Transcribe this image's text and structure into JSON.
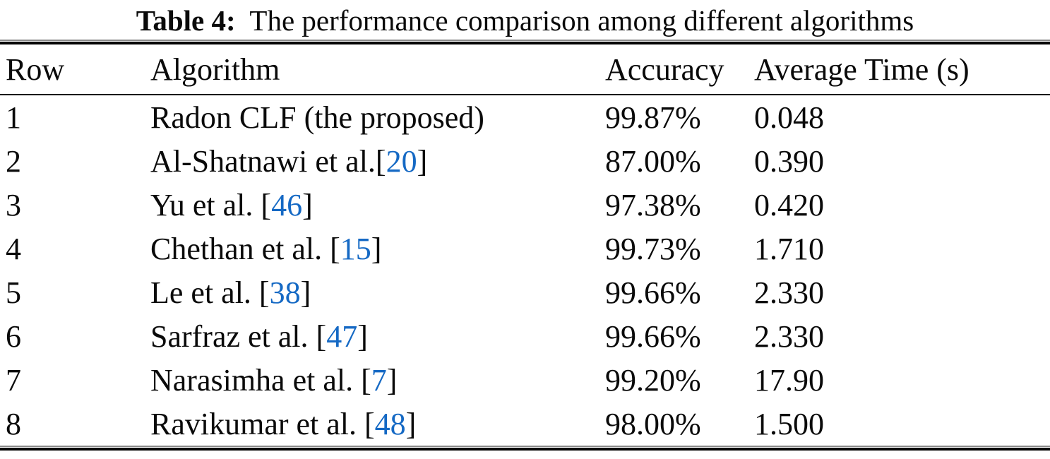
{
  "caption": {
    "label": "Table 4:",
    "text": "  The performance comparison among different algorithms"
  },
  "colors": {
    "text": "#0a0a0a",
    "citation": "#1569c4",
    "background": "#ffffff",
    "rule": "#050505"
  },
  "table": {
    "headers": [
      "Row",
      "Algorithm",
      "Accuracy",
      "Average Time (s)"
    ],
    "rows": [
      {
        "row": "1",
        "algorithm_pre": "Radon CLF (the proposed)",
        "citation": "",
        "accuracy": "99.87%",
        "time": "0.048"
      },
      {
        "row": "2",
        "algorithm_pre": "Al-Shatnawi et al.",
        "citation": "20",
        "accuracy": "87.00%",
        "time": "0.390"
      },
      {
        "row": "3",
        "algorithm_pre": "Yu et al. ",
        "citation": "46",
        "accuracy": "97.38%",
        "time": "0.420"
      },
      {
        "row": "4",
        "algorithm_pre": "Chethan et al. ",
        "citation": "15",
        "accuracy": "99.73%",
        "time": "1.710"
      },
      {
        "row": "5",
        "algorithm_pre": "Le et al. ",
        "citation": "38",
        "accuracy": "99.66%",
        "time": "2.330"
      },
      {
        "row": "6",
        "algorithm_pre": "Sarfraz et al. ",
        "citation": "47",
        "accuracy": "99.66%",
        "time": "2.330"
      },
      {
        "row": "7",
        "algorithm_pre": "Narasimha et al. ",
        "citation": "7",
        "accuracy": "99.20%",
        "time": "17.90"
      },
      {
        "row": "8",
        "algorithm_pre": "Ravikumar et al. ",
        "citation": "48",
        "accuracy": "98.00%",
        "time": "1.500"
      }
    ]
  }
}
